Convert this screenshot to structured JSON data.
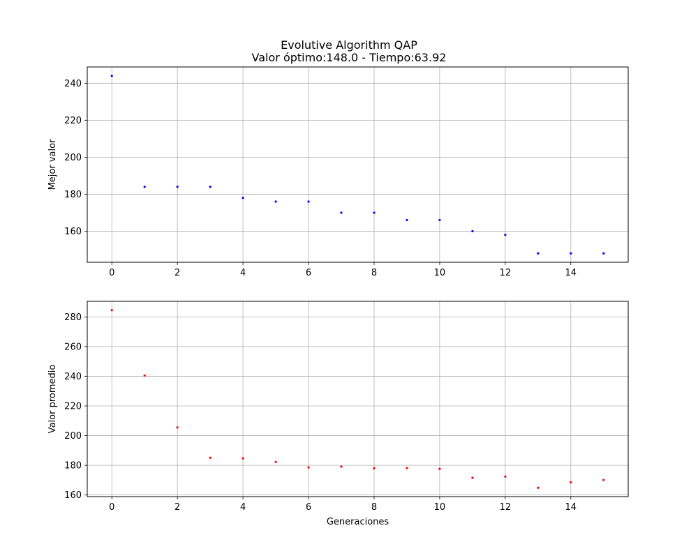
{
  "figure": {
    "title_line1": "Evolutive Algorithm QAP",
    "title_line2": "Valor óptimo:148.0 - Tiempo:63.92"
  },
  "chart_data": [
    {
      "type": "scatter",
      "title": "Evolutive Algorithm QAP\nValor óptimo:148.0 - Tiempo:63.92",
      "xlabel": "",
      "ylabel": "Mejor valor",
      "x": [
        0,
        1,
        2,
        3,
        4,
        5,
        6,
        7,
        8,
        9,
        10,
        11,
        12,
        13,
        14,
        15
      ],
      "y": [
        244,
        184,
        184,
        184,
        178,
        176,
        176,
        170,
        170,
        166,
        166,
        160,
        158,
        148,
        148,
        148
      ],
      "xlim": [
        -0.75,
        15.75
      ],
      "ylim": [
        143.2,
        248.8
      ],
      "xticks": [
        0,
        2,
        4,
        6,
        8,
        10,
        12,
        14
      ],
      "yticks": [
        160,
        180,
        200,
        220,
        240
      ],
      "grid": true,
      "color": "#0000ff"
    },
    {
      "type": "scatter",
      "xlabel": "Generaciones",
      "ylabel": "Valor promedio",
      "x": [
        0,
        1,
        2,
        3,
        4,
        5,
        6,
        7,
        8,
        9,
        10,
        11,
        12,
        13,
        14,
        15
      ],
      "y": [
        284.5,
        240.5,
        205.5,
        185.1,
        184.7,
        182.3,
        178.6,
        179.1,
        178.0,
        178.1,
        177.6,
        171.6,
        172.4,
        164.9,
        168.6,
        170.1
      ],
      "xlim": [
        -0.75,
        15.75
      ],
      "ylim": [
        158.9,
        290.5
      ],
      "xticks": [
        0,
        2,
        4,
        6,
        8,
        10,
        12,
        14
      ],
      "yticks": [
        160,
        180,
        200,
        220,
        240,
        260,
        280
      ],
      "grid": true,
      "color": "#ff0000"
    }
  ]
}
